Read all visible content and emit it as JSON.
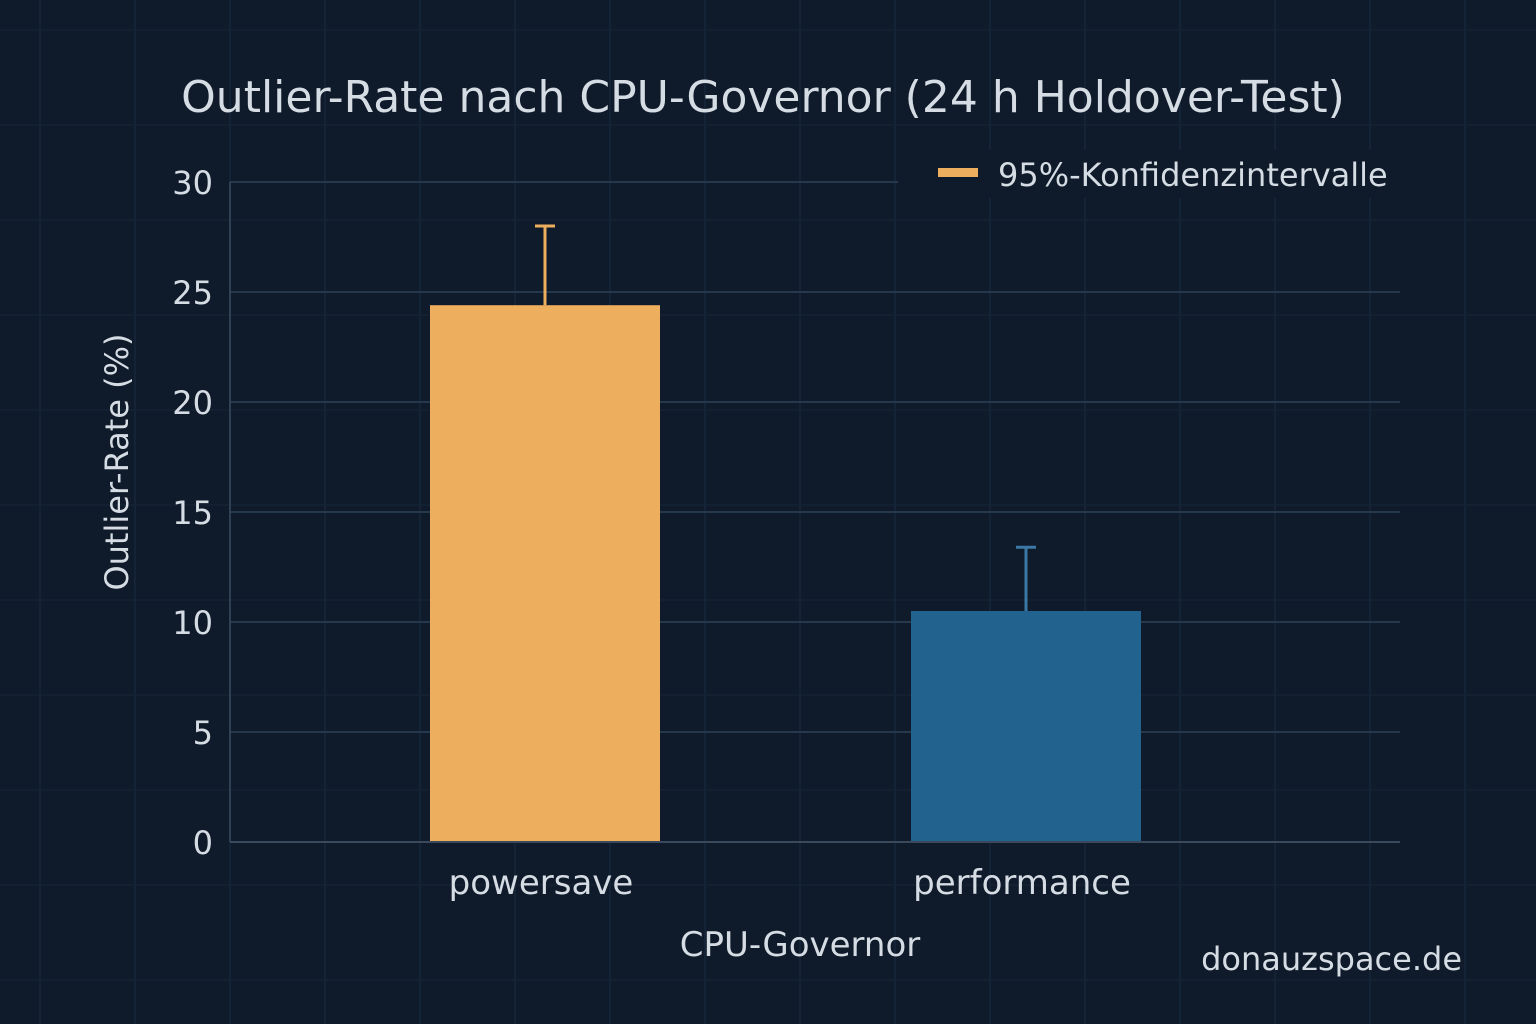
{
  "chart_data": {
    "type": "bar",
    "title": "Outlier-Rate nach CPU-Governor (24 h Holdover-Test)",
    "xlabel": "CPU-Governor",
    "ylabel": "Outlier-Rate (%)",
    "ylim": [
      0,
      30
    ],
    "yticks": [
      0,
      5,
      10,
      15,
      20,
      25,
      30
    ],
    "grid": true,
    "categories": [
      "powersave",
      "performance"
    ],
    "values": [
      24.4,
      10.5
    ],
    "ci_upper": [
      28.0,
      13.4
    ],
    "colors": [
      "#edae5e",
      "#22628f"
    ],
    "errorbar_colors": [
      "#edae5e",
      "#3b78a6"
    ],
    "legend": {
      "entries": [
        "95%-Konfidenzintervalle"
      ],
      "placement": "top-right",
      "color": "#edae5e"
    },
    "watermark": "donauzspace.de"
  }
}
